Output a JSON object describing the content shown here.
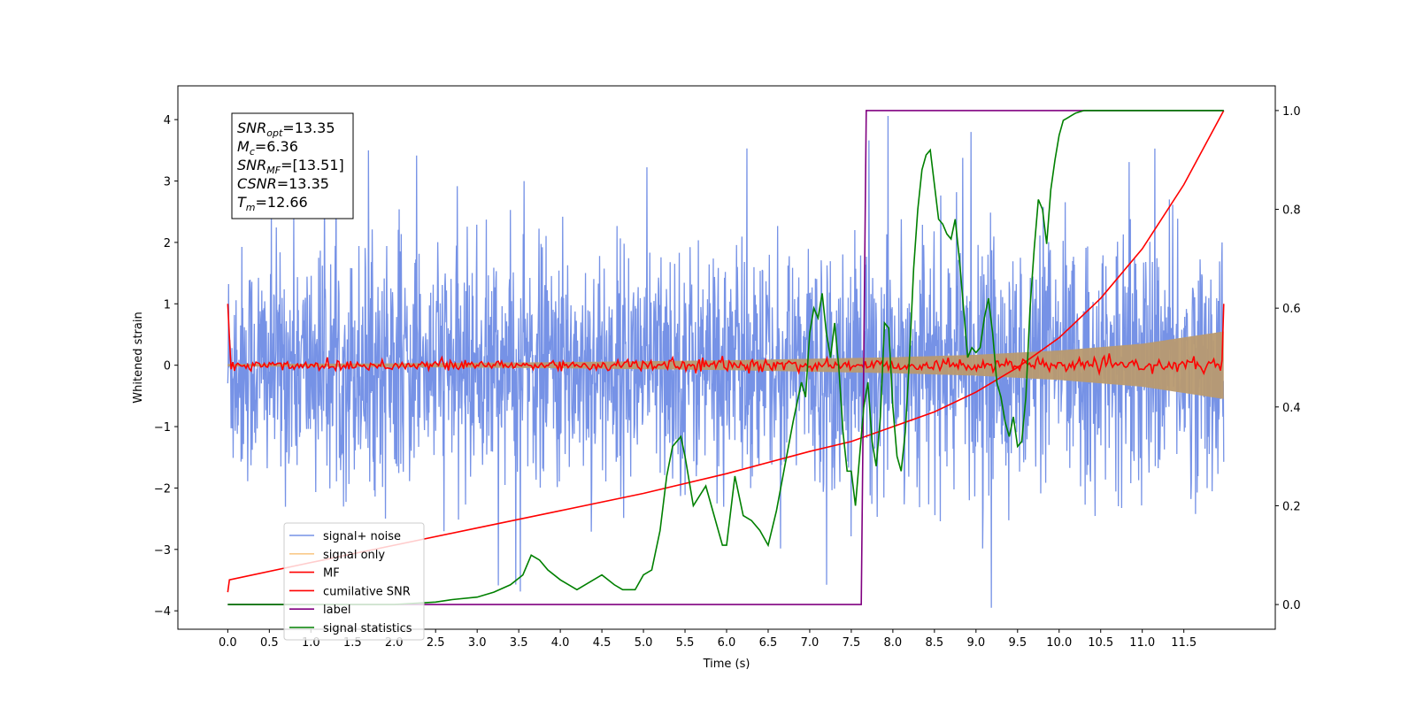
{
  "chart_data": {
    "type": "line",
    "xlabel": "Time (s)",
    "ylabel": "Whitened strain",
    "xlim": [
      -0.6,
      12.6
    ],
    "ylim": [
      -4.3,
      4.55
    ],
    "y2lim": [
      -0.05,
      1.05
    ],
    "x_ticks": [
      "0.0",
      "0.5",
      "1.0",
      "1.5",
      "2.0",
      "2.5",
      "3.0",
      "3.5",
      "4.0",
      "4.5",
      "5.0",
      "5.5",
      "6.0",
      "6.5",
      "7.0",
      "7.5",
      "8.0",
      "8.5",
      "9.0",
      "9.5",
      "10.0",
      "10.5",
      "11.0",
      "11.5"
    ],
    "y_ticks": [
      "−4",
      "−3",
      "−2",
      "−1",
      "0",
      "1",
      "2",
      "3",
      "4"
    ],
    "y2_ticks": [
      "0.0",
      "0.2",
      "0.4",
      "0.6",
      "0.8",
      "1.0"
    ],
    "legend_position": "lower-left",
    "annotation": [
      {
        "main": "SNR",
        "sub": "opt",
        "value": "=13.35"
      },
      {
        "main": "M",
        "sub": "c",
        "value": "=6.36"
      },
      {
        "main": "SNR",
        "sub": "MF",
        "value": "=[13.51]"
      },
      {
        "main": "CSNR",
        "sub": "",
        "value": "=13.35"
      },
      {
        "main": "T",
        "sub": "m",
        "value": "=12.66"
      }
    ],
    "series": [
      {
        "name": "signal+ noise",
        "color": "#7692e6",
        "axis": "left",
        "description": "whitened noisy strain, roughly within [-3, 3] with spikes to ±4",
        "x_range": [
          0.0,
          11.98
        ],
        "amplitude_typical": 2.0,
        "amplitude_max": 4.18
      },
      {
        "name": "signal only",
        "color": "#f9c98a",
        "axis": "left",
        "description": "chirp envelope growing with time",
        "envelope_x": [
          0,
          2,
          4,
          6,
          8,
          9,
          10,
          11,
          11.98
        ],
        "envelope_y": [
          0.02,
          0.03,
          0.05,
          0.08,
          0.13,
          0.17,
          0.24,
          0.35,
          0.55
        ]
      },
      {
        "name": "MF",
        "color": "#ff0000",
        "axis": "left",
        "description": "matched filter output near zero",
        "x_range": [
          0.0,
          11.98
        ],
        "start_value": 1.0,
        "end_value": 1.0,
        "noise_amplitude": 0.05
      },
      {
        "name": "cumilative SNR",
        "color": "#ff0000",
        "axis": "right",
        "x": [
          0.0,
          0.02,
          1,
          2,
          3,
          4,
          5,
          6,
          7,
          7.5,
          8,
          8.5,
          9,
          9.5,
          10,
          10.5,
          11,
          11.5,
          11.98
        ],
        "y": [
          0.025,
          0.05,
          0.085,
          0.12,
          0.155,
          0.19,
          0.225,
          0.265,
          0.31,
          0.33,
          0.36,
          0.39,
          0.43,
          0.48,
          0.54,
          0.62,
          0.72,
          0.85,
          1.0
        ]
      },
      {
        "name": "label",
        "color": "#800080",
        "axis": "right",
        "x": [
          0.0,
          7.62,
          7.68,
          11.98
        ],
        "y": [
          0.0,
          0.0,
          1.0,
          1.0
        ]
      },
      {
        "name": "signal statistics",
        "color": "#008000",
        "axis": "right",
        "x": [
          0.0,
          0.5,
          1.0,
          1.5,
          2.0,
          2.5,
          2.7,
          3.0,
          3.2,
          3.4,
          3.55,
          3.65,
          3.75,
          3.85,
          4.0,
          4.2,
          4.35,
          4.5,
          4.65,
          4.75,
          4.9,
          5.0,
          5.1,
          5.2,
          5.28,
          5.35,
          5.45,
          5.5,
          5.6,
          5.75,
          5.85,
          5.95,
          6.0,
          6.1,
          6.2,
          6.3,
          6.4,
          6.5,
          6.6,
          6.7,
          6.8,
          6.9,
          6.95,
          7.0,
          7.05,
          7.1,
          7.15,
          7.2,
          7.25,
          7.3,
          7.35,
          7.4,
          7.45,
          7.5,
          7.55,
          7.6,
          7.65,
          7.7,
          7.75,
          7.8,
          7.85,
          7.9,
          7.95,
          8.0,
          8.05,
          8.1,
          8.15,
          8.2,
          8.25,
          8.3,
          8.35,
          8.4,
          8.45,
          8.5,
          8.55,
          8.6,
          8.65,
          8.7,
          8.75,
          8.8,
          8.85,
          8.9,
          8.95,
          9.0,
          9.05,
          9.1,
          9.15,
          9.2,
          9.25,
          9.3,
          9.35,
          9.4,
          9.45,
          9.5,
          9.55,
          9.6,
          9.65,
          9.7,
          9.75,
          9.8,
          9.85,
          9.9,
          9.95,
          10.0,
          10.05,
          10.1,
          10.15,
          10.2,
          10.3,
          10.4,
          10.5,
          10.6,
          10.7,
          10.8,
          11.0,
          11.5,
          11.98
        ],
        "y": [
          0.0,
          0.0,
          0.0,
          0.0,
          0.0,
          0.005,
          0.01,
          0.015,
          0.025,
          0.04,
          0.06,
          0.1,
          0.09,
          0.07,
          0.05,
          0.03,
          0.045,
          0.06,
          0.04,
          0.03,
          0.03,
          0.06,
          0.07,
          0.15,
          0.26,
          0.32,
          0.34,
          0.3,
          0.2,
          0.24,
          0.18,
          0.12,
          0.12,
          0.26,
          0.18,
          0.17,
          0.15,
          0.12,
          0.19,
          0.28,
          0.37,
          0.45,
          0.42,
          0.55,
          0.6,
          0.58,
          0.63,
          0.55,
          0.5,
          0.57,
          0.48,
          0.35,
          0.27,
          0.27,
          0.2,
          0.3,
          0.4,
          0.45,
          0.33,
          0.28,
          0.38,
          0.57,
          0.56,
          0.4,
          0.3,
          0.27,
          0.35,
          0.5,
          0.68,
          0.8,
          0.88,
          0.91,
          0.92,
          0.85,
          0.78,
          0.77,
          0.75,
          0.74,
          0.78,
          0.7,
          0.6,
          0.5,
          0.52,
          0.51,
          0.52,
          0.58,
          0.62,
          0.55,
          0.45,
          0.42,
          0.37,
          0.34,
          0.38,
          0.32,
          0.33,
          0.42,
          0.6,
          0.72,
          0.82,
          0.8,
          0.73,
          0.84,
          0.9,
          0.95,
          0.98,
          0.985,
          0.99,
          0.995,
          1.0,
          1.0,
          1.0,
          1.0,
          1.0,
          1.0,
          1.0,
          1.0,
          1.0
        ]
      }
    ]
  }
}
